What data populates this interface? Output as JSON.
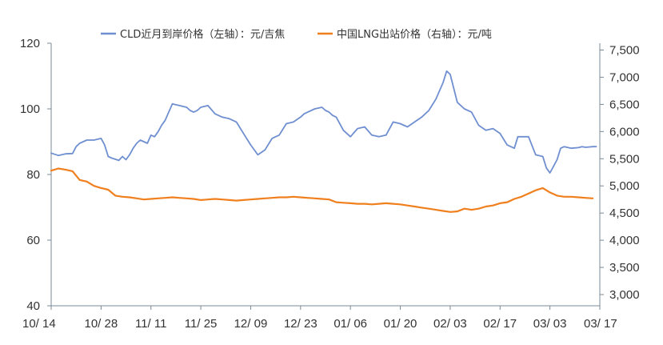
{
  "chart_data": {
    "type": "line",
    "title": "",
    "legend": {
      "placement": "top-center",
      "items": [
        {
          "label": "CLD近月到岸价格（左轴）：元/吉焦",
          "color": "#6f8fd0"
        },
        {
          "label": "中国LNG出站价格（右轴）：元/吨",
          "color": "#f07f1e"
        }
      ]
    },
    "x_axis": {
      "labels": [
        "10/ 14",
        "10/ 28",
        "11/ 11",
        "11/ 25",
        "12/ 09",
        "12/ 23",
        "01/ 06",
        "01/ 20",
        "02/ 03",
        "02/ 17",
        "03/ 03",
        "03/ 17"
      ],
      "range": [
        0,
        154
      ]
    },
    "y_axis_left": {
      "labels": [
        "40",
        "60",
        "80",
        "100",
        "120"
      ],
      "ticks": [
        40,
        60,
        80,
        100,
        120
      ],
      "range": [
        40,
        120
      ]
    },
    "y_axis_right": {
      "labels": [
        "3,000",
        "3,500",
        "4,000",
        "4,500",
        "5,000",
        "5,500",
        "6,000",
        "6,500",
        "7,000",
        "7,500"
      ],
      "ticks": [
        3000,
        3500,
        4000,
        4500,
        5000,
        5500,
        6000,
        6500,
        7000,
        7500
      ],
      "range": [
        2800,
        7800
      ]
    },
    "grid": false,
    "series": [
      {
        "name": "CLD近月到岸价格（左轴）：元/吉焦",
        "axis": "left",
        "color": "#6f8fd0",
        "x": [
          0,
          2,
          4,
          6,
          7,
          8,
          10,
          12,
          14,
          15,
          16,
          17,
          19,
          20,
          21,
          22,
          23,
          24,
          25,
          27,
          28,
          29,
          30,
          31,
          32,
          34,
          36,
          38,
          39,
          40,
          41,
          42,
          44,
          46,
          48,
          50,
          52,
          54,
          56,
          58,
          60,
          62,
          63,
          64,
          66,
          68,
          70,
          71,
          72,
          74,
          76,
          77,
          78,
          79,
          80,
          82,
          84,
          86,
          88,
          90,
          92,
          94,
          96,
          98,
          99,
          100,
          102,
          104,
          106,
          108,
          110,
          111,
          112,
          114,
          116,
          118,
          120,
          122,
          124,
          126,
          128,
          130,
          131,
          132,
          134,
          136,
          138,
          139,
          140,
          141,
          142,
          143,
          144,
          146,
          148,
          149,
          150,
          151,
          152,
          153
        ],
        "values": [
          86.5,
          85.8,
          86.3,
          86.4,
          88.5,
          89.5,
          90.5,
          90.5,
          91.0,
          89.0,
          85.5,
          85.0,
          84.3,
          85.5,
          84.5,
          86.0,
          88.0,
          89.5,
          90.5,
          89.5,
          92.0,
          91.5,
          93.0,
          95.0,
          96.5,
          101.5,
          101.0,
          100.5,
          99.5,
          99.0,
          99.5,
          100.5,
          101.0,
          98.5,
          97.5,
          97.0,
          96.0,
          92.5,
          89.0,
          86.0,
          87.5,
          91.0,
          91.5,
          92.0,
          95.5,
          96.0,
          97.5,
          98.5,
          99.0,
          100.0,
          100.5,
          99.5,
          99.0,
          98.0,
          97.5,
          93.5,
          91.5,
          94.0,
          94.5,
          92.0,
          91.5,
          92.0,
          96.0,
          95.5,
          95.0,
          94.5,
          96.0,
          97.5,
          99.5,
          103.0,
          108.0,
          111.5,
          110.5,
          102.0,
          100.0,
          99.0,
          95.0,
          93.5,
          94.0,
          92.5,
          89.0,
          88.0,
          91.5,
          91.5,
          91.5,
          86.0,
          85.5,
          82.0,
          80.5,
          82.5,
          84.5,
          88.0,
          88.5,
          88.0,
          88.2,
          88.5,
          88.3,
          88.4,
          88.5,
          88.5
        ]
      },
      {
        "name": "中国LNG出站价格（右轴）：元/吨",
        "axis": "right",
        "color": "#f07f1e",
        "x": [
          0,
          2,
          4,
          6,
          8,
          10,
          12,
          14,
          16,
          18,
          20,
          22,
          24,
          26,
          28,
          30,
          32,
          34,
          36,
          38,
          40,
          42,
          44,
          46,
          48,
          50,
          52,
          54,
          56,
          58,
          60,
          62,
          64,
          66,
          68,
          70,
          72,
          74,
          76,
          78,
          80,
          82,
          84,
          86,
          88,
          90,
          92,
          94,
          96,
          98,
          100,
          102,
          104,
          106,
          108,
          110,
          112,
          114,
          116,
          118,
          120,
          122,
          124,
          126,
          128,
          130,
          132,
          134,
          136,
          138,
          140,
          142,
          144,
          146,
          148,
          150,
          152
        ],
        "values": [
          5280,
          5320,
          5300,
          5270,
          5110,
          5080,
          5000,
          4960,
          4930,
          4820,
          4800,
          4790,
          4770,
          4750,
          4760,
          4770,
          4780,
          4790,
          4780,
          4770,
          4760,
          4740,
          4750,
          4760,
          4750,
          4740,
          4730,
          4740,
          4750,
          4760,
          4770,
          4780,
          4790,
          4790,
          4800,
          4790,
          4780,
          4770,
          4760,
          4750,
          4700,
          4690,
          4680,
          4670,
          4670,
          4660,
          4670,
          4680,
          4670,
          4660,
          4640,
          4620,
          4600,
          4580,
          4560,
          4540,
          4520,
          4530,
          4580,
          4560,
          4580,
          4620,
          4640,
          4680,
          4700,
          4760,
          4800,
          4860,
          4920,
          4960,
          4880,
          4820,
          4800,
          4800,
          4790,
          4780,
          4770
        ]
      }
    ]
  }
}
